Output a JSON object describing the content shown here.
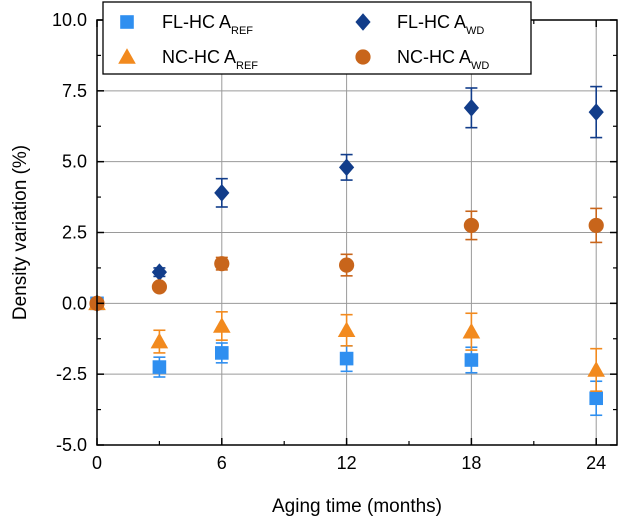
{
  "chart_data": {
    "type": "scatter",
    "title": "",
    "xlabel": "Aging time (months)",
    "ylabel": "Density variation (%)",
    "xlim": [
      0,
      25
    ],
    "ylim": [
      -5.0,
      10.0
    ],
    "xticks": [
      0,
      6,
      12,
      18,
      24
    ],
    "yticks": [
      -5.0,
      -2.5,
      0.0,
      2.5,
      5.0,
      7.5,
      10.0
    ],
    "ytick_labels": [
      "-5.0",
      "-2.5",
      "0.0",
      "2.5",
      "5.0",
      "7.5",
      "10.0"
    ],
    "grid": true,
    "legend_position": "top",
    "series": [
      {
        "name": "FL-HC A_REF",
        "legend_main": "FL-HC A",
        "legend_sub": "REF",
        "marker": "square",
        "color": "#2f8ff0",
        "x": [
          0,
          3,
          6,
          12,
          18,
          24
        ],
        "y": [
          0.0,
          -2.25,
          -1.75,
          -1.95,
          -2.0,
          -3.35
        ],
        "err": [
          0.0,
          0.35,
          0.35,
          0.45,
          0.45,
          0.6
        ]
      },
      {
        "name": "NC-HC A_REF",
        "legend_main": "NC-HC A",
        "legend_sub": "REF",
        "marker": "triangle",
        "color": "#f28a1e",
        "x": [
          0,
          3,
          6,
          12,
          18,
          24
        ],
        "y": [
          0.0,
          -1.35,
          -0.8,
          -0.95,
          -1.0,
          -2.35
        ],
        "err": [
          0.0,
          0.4,
          0.5,
          0.55,
          0.65,
          0.75
        ]
      },
      {
        "name": "FL-HC A_WD",
        "legend_main": "FL-HC A",
        "legend_sub": "WD",
        "marker": "diamond",
        "color": "#123d8a",
        "x": [
          0,
          3,
          6,
          12,
          18,
          24
        ],
        "y": [
          0.0,
          1.1,
          3.9,
          4.8,
          6.9,
          6.75
        ],
        "err": [
          0.0,
          0.15,
          0.5,
          0.45,
          0.7,
          0.9
        ]
      },
      {
        "name": "NC-HC A_WD",
        "legend_main": "NC-HC A",
        "legend_sub": "WD",
        "marker": "circle",
        "color": "#c8651b",
        "x": [
          0,
          3,
          6,
          12,
          18,
          24
        ],
        "y": [
          0.0,
          0.58,
          1.4,
          1.35,
          2.75,
          2.75
        ],
        "err": [
          0.0,
          0.12,
          0.22,
          0.38,
          0.5,
          0.6
        ]
      }
    ]
  }
}
